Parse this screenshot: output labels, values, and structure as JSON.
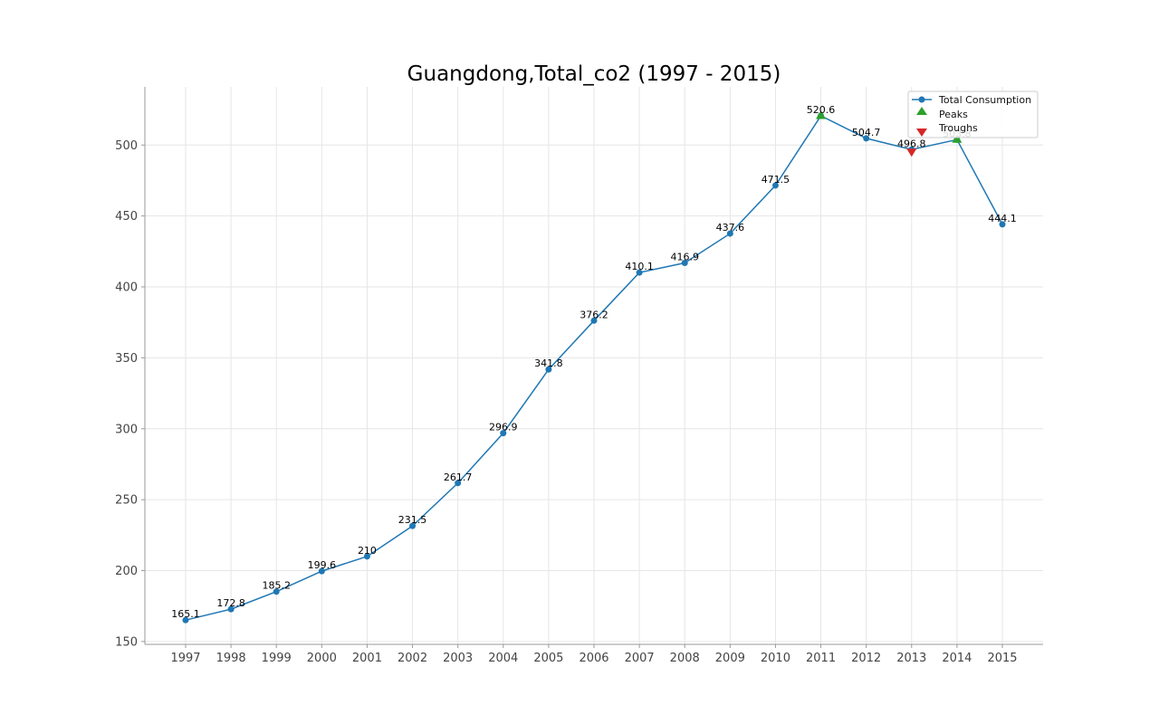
{
  "chart_data": {
    "type": "line",
    "title": "Guangdong,Total_co2 (1997 - 2015)",
    "xlabel": "",
    "ylabel": "",
    "x": [
      "1997",
      "1998",
      "1999",
      "2000",
      "2001",
      "2002",
      "2003",
      "2004",
      "2005",
      "2006",
      "2007",
      "2008",
      "2009",
      "2010",
      "2011",
      "2012",
      "2013",
      "2014",
      "2015"
    ],
    "series": [
      {
        "name": "Total Consumption",
        "color": "#1f77b4",
        "values": [
          165.1,
          172.8,
          185.2,
          199.6,
          210,
          231.5,
          261.7,
          296.9,
          341.8,
          376.2,
          410.1,
          416.9,
          437.6,
          471.5,
          520.6,
          504.7,
          496.8,
          503.8,
          444.1
        ],
        "labels": [
          "165.1",
          "172.8",
          "185.2",
          "199.6",
          "210",
          "231.5",
          "261.7",
          "296.9",
          "341.8",
          "376.2",
          "410.1",
          "416.9",
          "437.6",
          "471.5",
          "520.6",
          "504.7",
          "496.8",
          "503.8",
          "444.1"
        ]
      }
    ],
    "peaks": {
      "name": "Peaks",
      "color": "#2ca02c",
      "x": [
        "2011",
        "2014"
      ],
      "values": [
        520.6,
        503.8
      ]
    },
    "troughs": {
      "name": "Troughs",
      "color": "#d62728",
      "x": [
        "2013"
      ],
      "values": [
        496.8
      ]
    },
    "ylim": [
      148,
      541
    ],
    "yticks": [
      150,
      200,
      250,
      300,
      350,
      400,
      450,
      500
    ],
    "grid": true,
    "legend": "top-right"
  }
}
